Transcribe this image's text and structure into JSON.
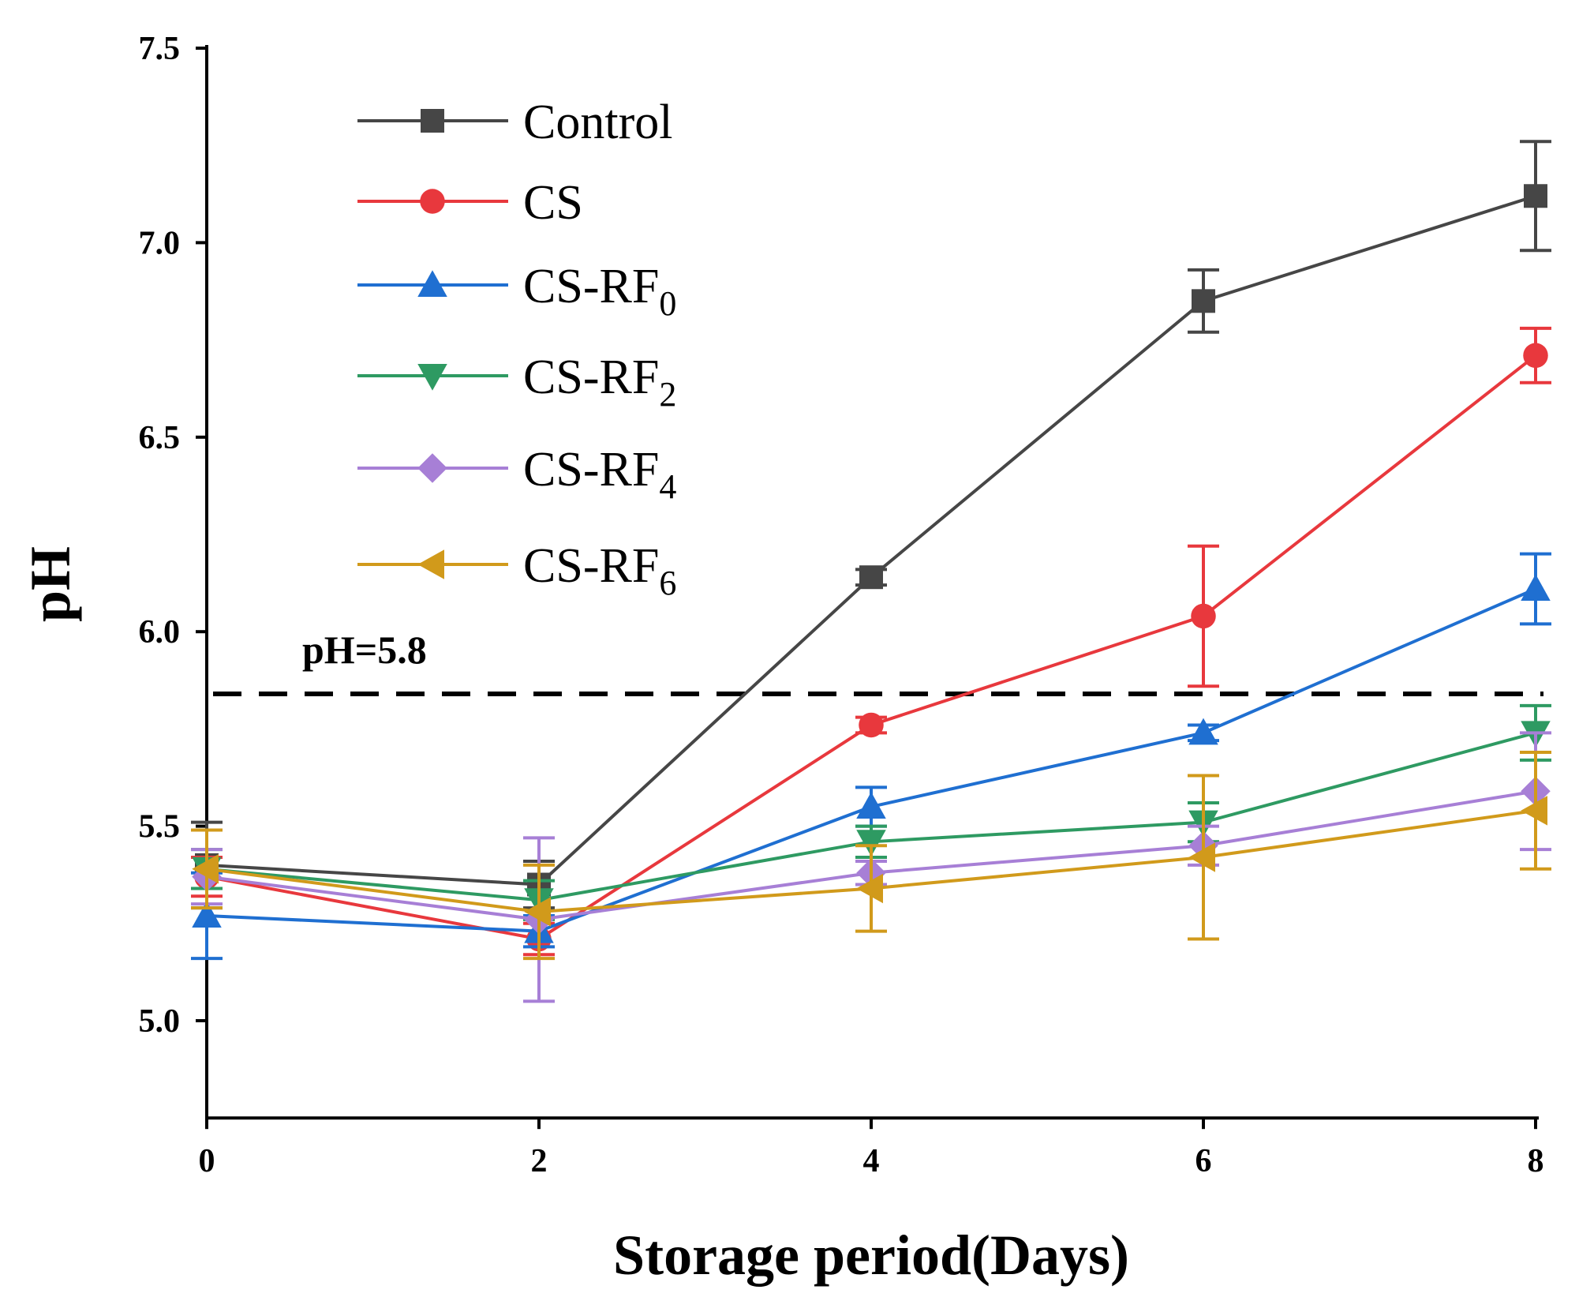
{
  "chart_data": {
    "type": "line",
    "title": "",
    "xlabel": "Storage period(Days)",
    "ylabel": "pH",
    "x": [
      0,
      2,
      4,
      6,
      8
    ],
    "xlim": [
      0,
      8
    ],
    "ylim": [
      4.75,
      7.5
    ],
    "xticks": [
      "0",
      "2",
      "4",
      "6",
      "8"
    ],
    "yticks": [
      "5.0",
      "5.5",
      "6.0",
      "6.5",
      "7.0",
      "7.5"
    ],
    "grid": false,
    "legend_position": "top-left",
    "reference_line": {
      "value": 5.84,
      "label": "pH=5.8",
      "style": "dashed"
    },
    "series": [
      {
        "name": "Control",
        "label_main": "Control",
        "label_sub": "",
        "color": "#464646",
        "marker": "square",
        "values": [
          5.4,
          5.35,
          6.14,
          6.85,
          7.12
        ],
        "errors": [
          0.11,
          0.06,
          0.02,
          0.08,
          0.14
        ]
      },
      {
        "name": "CS",
        "label_main": "CS",
        "label_sub": "",
        "color": "#e8383d",
        "marker": "circle",
        "values": [
          5.37,
          5.21,
          5.76,
          6.04,
          6.71
        ],
        "errors": [
          0.05,
          0.04,
          0.02,
          0.18,
          0.07
        ]
      },
      {
        "name": "CS-RF0",
        "label_main": "CS-RF",
        "label_sub": "0",
        "color": "#1f6fd1",
        "marker": "triangle-up",
        "values": [
          5.27,
          5.23,
          5.55,
          5.74,
          6.11
        ],
        "errors": [
          0.11,
          0.04,
          0.05,
          0.02,
          0.09
        ]
      },
      {
        "name": "CS-RF2",
        "label_main": "CS-RF",
        "label_sub": "2",
        "color": "#2e9a62",
        "marker": "triangle-down",
        "values": [
          5.39,
          5.31,
          5.46,
          5.51,
          5.74
        ],
        "errors": [
          0.05,
          0.05,
          0.04,
          0.05,
          0.07
        ]
      },
      {
        "name": "CS-RF4",
        "label_main": "CS-RF",
        "label_sub": "4",
        "color": "#a77fd6",
        "marker": "diamond",
        "values": [
          5.37,
          5.26,
          5.38,
          5.45,
          5.59
        ],
        "errors": [
          0.07,
          0.21,
          0.03,
          0.05,
          0.15
        ]
      },
      {
        "name": "CS-RF6",
        "label_main": "CS-RF",
        "label_sub": "6",
        "color": "#d19a1b",
        "marker": "triangle-left",
        "values": [
          5.39,
          5.28,
          5.34,
          5.42,
          5.54
        ],
        "errors": [
          0.1,
          0.12,
          0.11,
          0.21,
          0.15
        ]
      }
    ]
  }
}
